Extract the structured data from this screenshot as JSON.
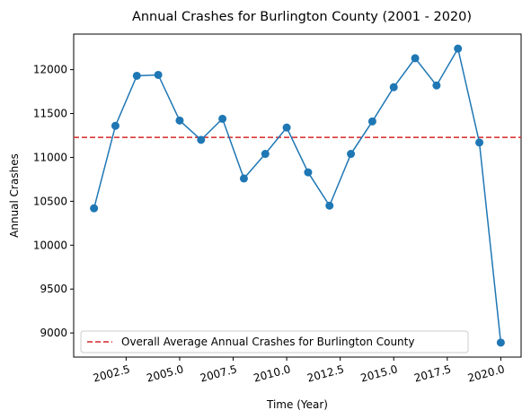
{
  "chart_data": {
    "type": "line",
    "title": "Annual Crashes for Burlington County (2001 - 2020)",
    "xlabel": "Time (Year)",
    "ylabel": "Annual Crashes",
    "x": [
      2001,
      2002,
      2003,
      2004,
      2005,
      2006,
      2007,
      2008,
      2009,
      2010,
      2011,
      2012,
      2013,
      2014,
      2015,
      2016,
      2017,
      2018,
      2019,
      2020
    ],
    "series": [
      {
        "values": [
          10420,
          11360,
          11930,
          11940,
          11420,
          11200,
          11440,
          10760,
          11040,
          11340,
          10830,
          10450,
          11040,
          11410,
          11800,
          12130,
          11820,
          12240,
          11170,
          8890
        ],
        "color": "#1f77b4",
        "marker": "circle"
      }
    ],
    "reference_line": {
      "value": 11228,
      "label": "Overall Average Annual Crashes for Burlington County",
      "color": "#d62728",
      "style": "dashed"
    },
    "xlim": [
      2000.05,
      2020.95
    ],
    "ylim": [
      8725,
      12405
    ],
    "xticks": [
      2002.5,
      2005.0,
      2007.5,
      2010.0,
      2012.5,
      2015.0,
      2017.5,
      2020.0
    ],
    "xtick_labels": [
      "2002.5",
      "2005.0",
      "2007.5",
      "2010.0",
      "2012.5",
      "2015.0",
      "2017.5",
      "2020.0"
    ],
    "yticks": [
      9000,
      9500,
      10000,
      10500,
      11000,
      11500,
      12000
    ],
    "ytick_labels": [
      "9000",
      "9500",
      "10000",
      "10500",
      "11000",
      "11500",
      "12000"
    ],
    "xtick_rotation_deg": 15,
    "grid": false,
    "legend_position": "lower-left"
  }
}
